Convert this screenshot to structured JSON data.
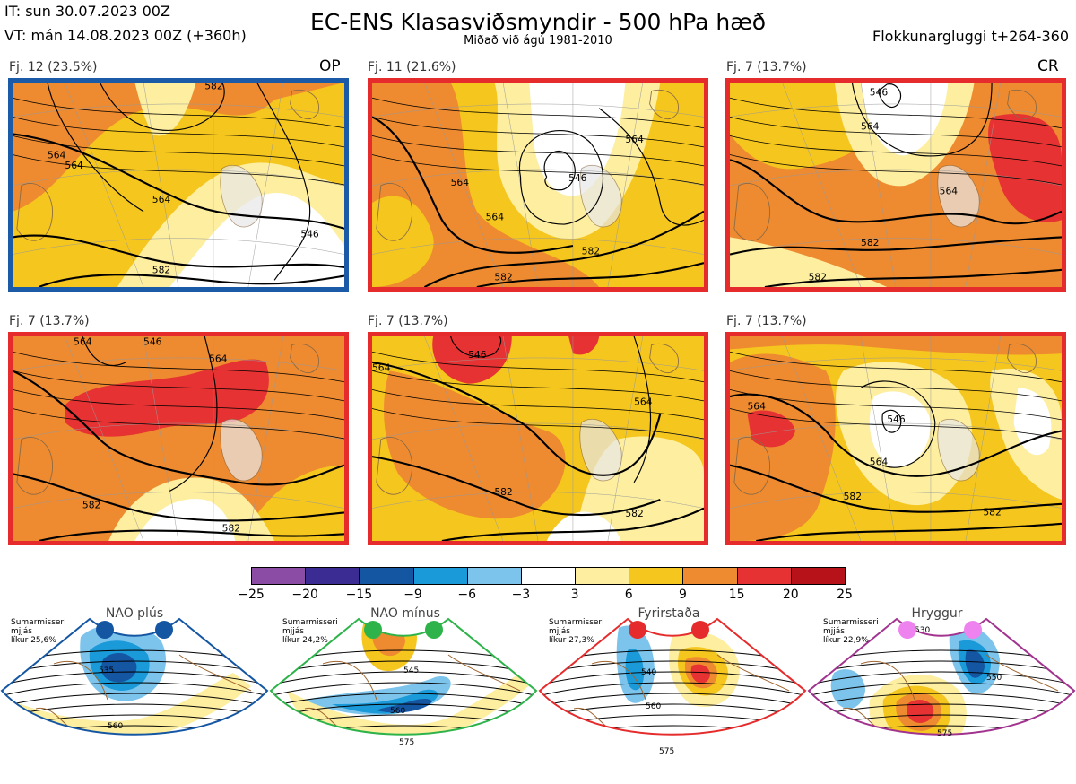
{
  "header": {
    "it": "IT: sun 30.07.2023 00Z",
    "vt": "VT: mán 14.08.2023 00Z  (+360h)",
    "title": "EC-ENS Klasasviðsmyndir - 500 hPa hæð",
    "subtitle": "Miðað við ágú 1981-2010",
    "window": "Flokkunargluggi t+264-360"
  },
  "panels": [
    {
      "label": "Fj. 12 (23.5%)",
      "tag": "OP",
      "border": "#1a5aa6",
      "contours": [
        {
          "label": "564"
        },
        {
          "label": "564"
        },
        {
          "label": "582"
        },
        {
          "label": "582"
        },
        {
          "label": "546"
        },
        {
          "label": "564"
        }
      ]
    },
    {
      "label": "Fj. 11 (21.6%)",
      "tag": "",
      "border": "#e52b2b",
      "contours": [
        {
          "label": "564"
        },
        {
          "label": "582"
        },
        {
          "label": "582"
        },
        {
          "label": "546"
        },
        {
          "label": "564"
        },
        {
          "label": "564"
        }
      ]
    },
    {
      "label": "Fj. 7 (13.7%)",
      "tag": "CR",
      "border": "#e52b2b",
      "contours": [
        {
          "label": "564"
        },
        {
          "label": "582"
        },
        {
          "label": "582"
        },
        {
          "label": "546"
        },
        {
          "label": "564"
        }
      ]
    },
    {
      "label": "Fj. 7 (13.7%)",
      "tag": "",
      "border": "#e52b2b",
      "contours": [
        {
          "label": "564"
        },
        {
          "label": "582"
        },
        {
          "label": "582"
        },
        {
          "label": "546"
        },
        {
          "label": "564"
        }
      ]
    },
    {
      "label": "Fj. 7 (13.7%)",
      "tag": "",
      "border": "#e52b2b",
      "contours": [
        {
          "label": "564"
        },
        {
          "label": "582"
        },
        {
          "label": "582"
        },
        {
          "label": "546"
        },
        {
          "label": "564"
        }
      ]
    },
    {
      "label": "Fj. 7 (13.7%)",
      "tag": "",
      "border": "#e52b2b",
      "contours": [
        {
          "label": "564"
        },
        {
          "label": "582"
        },
        {
          "label": "582"
        },
        {
          "label": "546"
        },
        {
          "label": "564"
        }
      ]
    }
  ],
  "colorbar": {
    "ticks": [
      "−25",
      "−20",
      "−15",
      "−9",
      "−6",
      "−3",
      "3",
      "6",
      "9",
      "15",
      "20",
      "25"
    ],
    "colors": [
      "#8b4ca6",
      "#3b2c94",
      "#1556a3",
      "#1a9ad9",
      "#7dc4ec",
      "#ffffff",
      "#fdeea0",
      "#f5c61d",
      "#ee8a30",
      "#e63232",
      "#b7111a"
    ]
  },
  "regimes": [
    {
      "name": "NAO plús",
      "season": "Sumarmisseri",
      "smooth": "mjjás",
      "prob": "líkur 25,6%",
      "color": "#1556a3",
      "labels": [
        "535",
        "560"
      ]
    },
    {
      "name": "NAO mínus",
      "season": "Sumarmisseri",
      "smooth": "mjjás",
      "prob": "líkur 24,2%",
      "color": "#2db34a",
      "labels": [
        "545",
        "560",
        "575"
      ]
    },
    {
      "name": "Fyrirstaða",
      "season": "Sumarmisseri",
      "smooth": "mjjás",
      "prob": "líkur 27,3%",
      "color": "#e52b2b",
      "labels": [
        "540",
        "560",
        "575"
      ]
    },
    {
      "name": "Hryggur",
      "season": "Sumarmisseri",
      "smooth": "mjjás",
      "prob": "líkur 22,9%",
      "color": "#a1338f",
      "dot_color": "#ee82ee",
      "labels": [
        "530",
        "550",
        "575"
      ]
    }
  ]
}
